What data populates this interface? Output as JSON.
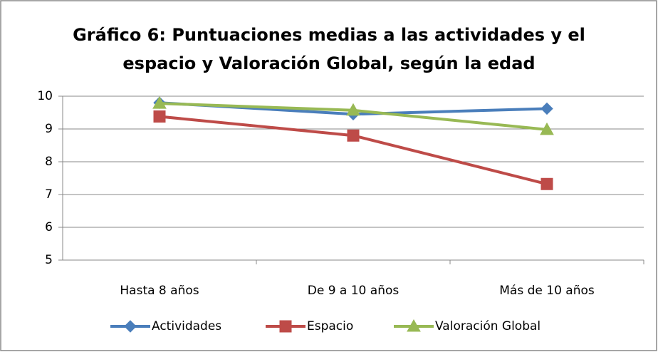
{
  "chart_data": {
    "type": "line",
    "title": [
      "Gráfico 6: Puntuaciones medias a las actividades y el",
      "espacio y Valoración Global, según la edad"
    ],
    "categories": [
      "Hasta 8 años",
      "De 9 a 10 años",
      "Más de 10 años"
    ],
    "series": [
      {
        "name": "Actividades",
        "color": "#4a7ebb",
        "marker": "diamond",
        "values": [
          9.8,
          9.45,
          9.62
        ]
      },
      {
        "name": "Espacio",
        "color": "#be4b48",
        "marker": "square",
        "values": [
          9.38,
          8.8,
          7.32
        ]
      },
      {
        "name": "Valoración Global",
        "color": "#98b954",
        "marker": "triangle",
        "values": [
          9.78,
          9.57,
          8.98
        ]
      }
    ],
    "ylim": [
      5,
      10
    ],
    "yticks": [
      5,
      6,
      7,
      8,
      9,
      10
    ],
    "grid": true,
    "legend": "bottom"
  }
}
